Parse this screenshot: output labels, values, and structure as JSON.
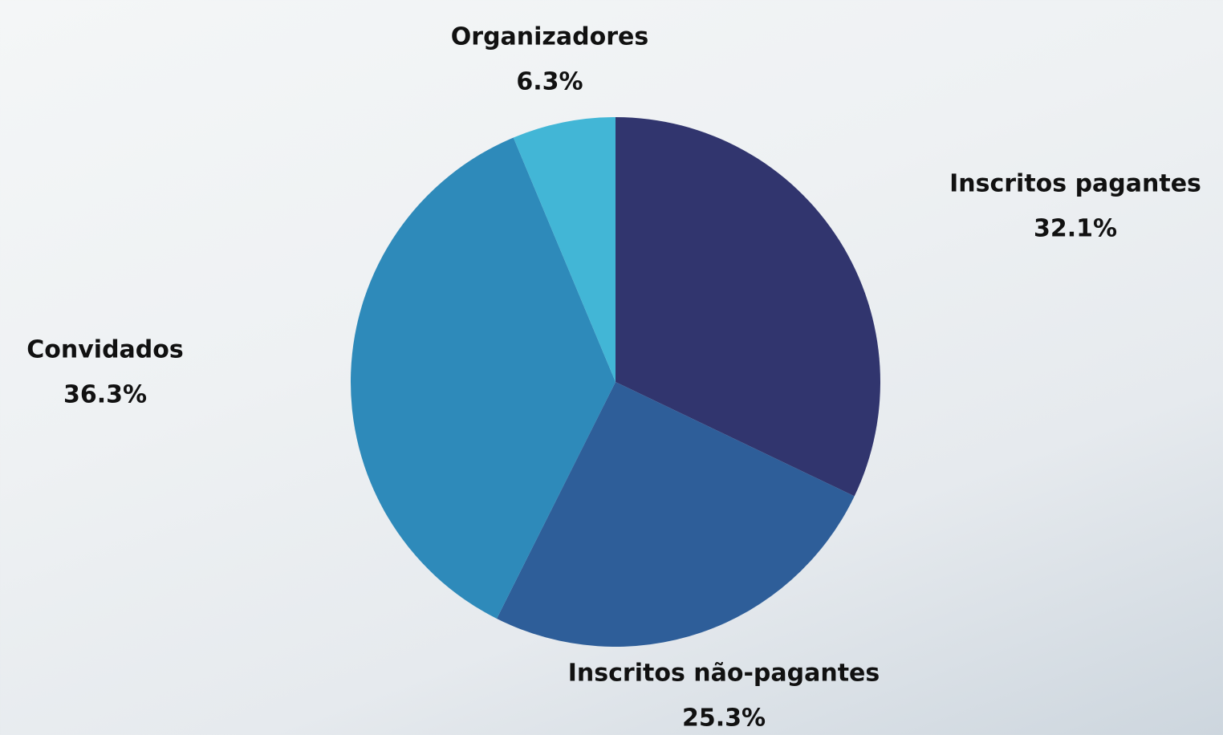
{
  "chart_data": {
    "type": "pie",
    "categories": [
      "Inscritos pagantes",
      "Inscritos não-pagantes",
      "Convidados",
      "Organizadores"
    ],
    "values": [
      32.1,
      25.3,
      36.3,
      6.3
    ],
    "value_labels": [
      "32.1%",
      "25.3%",
      "36.3%",
      "6.3%"
    ],
    "colors": [
      "#31356e",
      "#2e5e99",
      "#2e8aba",
      "#42b6d6"
    ]
  }
}
